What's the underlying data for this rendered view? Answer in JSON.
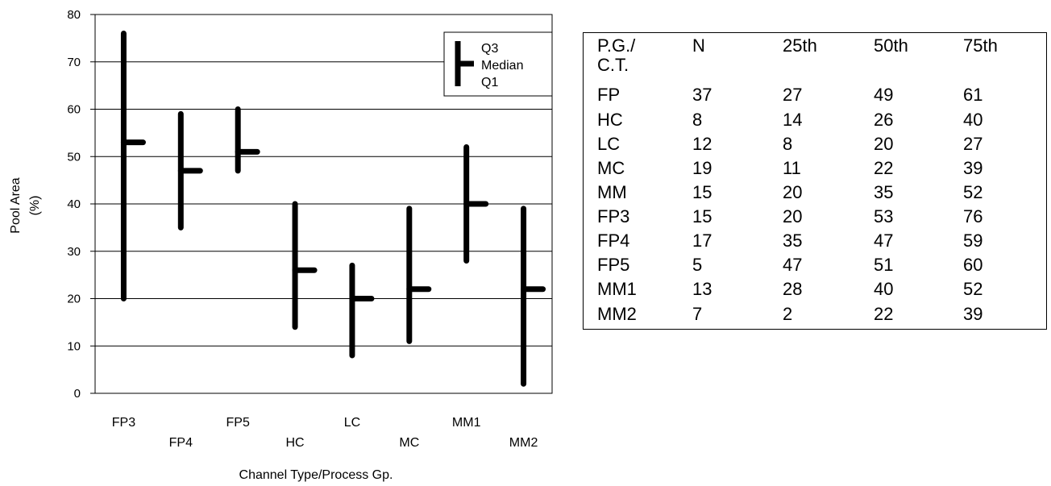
{
  "chart_data": {
    "type": "range",
    "xlabel": "Channel Type/Process Gp.",
    "ylabel_line1": "Pool Area",
    "ylabel_line2": "(%)",
    "ylim": [
      0,
      80
    ],
    "yticks": [
      0,
      10,
      20,
      30,
      40,
      50,
      60,
      70,
      80
    ],
    "grid": true,
    "categories": [
      "FP3",
      "FP4",
      "FP5",
      "HC",
      "LC",
      "MC",
      "MM1",
      "MM2"
    ],
    "series": [
      {
        "name": "Q3",
        "values": [
          76,
          59,
          60,
          40,
          27,
          39,
          52,
          39
        ]
      },
      {
        "name": "Median",
        "values": [
          53,
          47,
          51,
          26,
          20,
          22,
          40,
          22
        ]
      },
      {
        "name": "Q1",
        "values": [
          20,
          35,
          47,
          14,
          8,
          11,
          28,
          2
        ]
      }
    ],
    "legend": {
      "position": "top-right",
      "labels": [
        "Q3",
        "Median",
        "Q1"
      ]
    }
  },
  "table": {
    "header": [
      "P.G./\nC.T.",
      "N",
      "25th",
      "50th",
      "75th"
    ],
    "rows": [
      [
        "FP",
        "37",
        "27",
        "49",
        "61"
      ],
      [
        "HC",
        "8",
        "14",
        "26",
        "40"
      ],
      [
        "LC",
        "12",
        "8",
        "20",
        "27"
      ],
      [
        "MC",
        "19",
        "11",
        "22",
        "39"
      ],
      [
        "MM",
        "15",
        "20",
        "35",
        "52"
      ],
      [
        "FP3",
        "15",
        "20",
        "53",
        "76"
      ],
      [
        "FP4",
        "17",
        "35",
        "47",
        "59"
      ],
      [
        "FP5",
        "5",
        "47",
        "51",
        "60"
      ],
      [
        "MM1",
        "13",
        "28",
        "40",
        "52"
      ],
      [
        "MM2",
        "7",
        "2",
        "22",
        "39"
      ]
    ]
  }
}
